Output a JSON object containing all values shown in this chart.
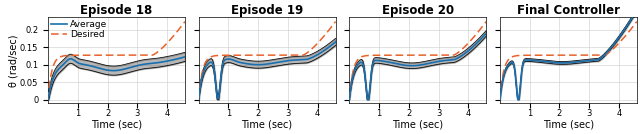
{
  "titles": [
    "Episode 18",
    "Episode 19",
    "Episode 20",
    "Final Controller"
  ],
  "xlabel": "Time (sec)",
  "ylabel": "θ (rad/sec)",
  "xlim": [
    0.0,
    4.6
  ],
  "ylim": [
    -0.01,
    0.235
  ],
  "yticks": [
    0.0,
    0.05,
    0.1,
    0.15,
    0.2
  ],
  "xticks": [
    1,
    2,
    3,
    4
  ],
  "avg_color": "#1a6faf",
  "desired_color": "#e8622a",
  "band_alpha": 0.35,
  "title_fontsize": 8.5,
  "label_fontsize": 7,
  "tick_fontsize": 6
}
